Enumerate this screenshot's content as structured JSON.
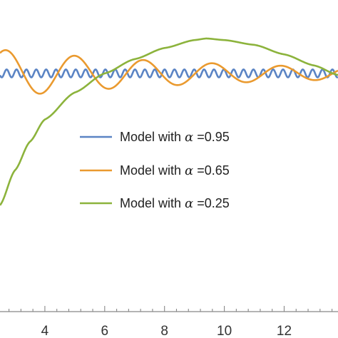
{
  "chart_data": {
    "type": "line",
    "title": "",
    "xlabel": "",
    "ylabel": "",
    "xlim": [
      2.5,
      13.8
    ],
    "ylim": [
      -0.5,
      1.35
    ],
    "grid": false,
    "legend_position": "center-right",
    "x_ticks": [
      4,
      6,
      8,
      10,
      12
    ],
    "x_tick_labels": [
      "4",
      "6",
      "8",
      "10",
      "12"
    ],
    "series": [
      {
        "name": "Model with α =0.95",
        "legend_prefix": "Model with ",
        "legend_symbol": "α",
        "legend_value": " =0.95",
        "color": "#5b84c4",
        "equilibrium": 1.0,
        "amplitude": 0.025,
        "period": 0.33
      },
      {
        "name": "Model with α =0.65",
        "legend_prefix": "Model with ",
        "legend_symbol": "α",
        "legend_value": " =0.65",
        "color": "#ea9a2f",
        "equilibrium": 1.0,
        "amplitude": 0.15,
        "decay": 0.12,
        "period": 2.3
      },
      {
        "name": "Model with α =0.25",
        "legend_prefix": "Model with ",
        "legend_symbol": "α",
        "legend_value": " =0.25",
        "color": "#8cb33c",
        "peak_x": 9.4,
        "peak_y": 1.22,
        "x": [
          2.5,
          3.0,
          3.5,
          4.0,
          5.0,
          6.0,
          7.0,
          8.0,
          9.0,
          9.4,
          10.0,
          11.0,
          12.0,
          13.0,
          13.8
        ],
        "y": [
          0.17,
          0.39,
          0.57,
          0.71,
          0.88,
          1.0,
          1.09,
          1.16,
          1.21,
          1.22,
          1.21,
          1.18,
          1.12,
          1.05,
          0.99
        ]
      }
    ]
  }
}
